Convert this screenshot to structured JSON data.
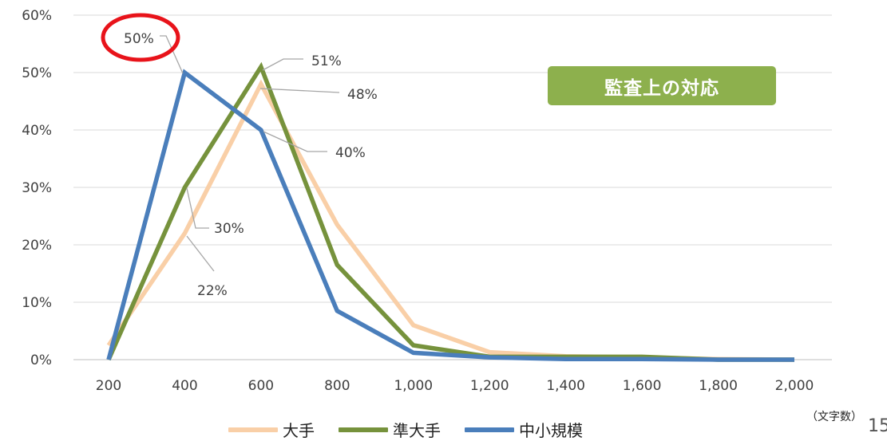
{
  "chart_data": {
    "type": "line",
    "x": [
      200,
      400,
      600,
      800,
      1000,
      1200,
      1400,
      1600,
      1800,
      2000
    ],
    "x_tick_labels": [
      "200",
      "400",
      "600",
      "800",
      "1,000",
      "1,200",
      "1,400",
      "1,600",
      "1,800",
      "2,000"
    ],
    "y_tick_labels": [
      "0%",
      "10%",
      "20%",
      "30%",
      "40%",
      "50%",
      "60%"
    ],
    "ylim": [
      0,
      60
    ],
    "grid": true,
    "legend_position": "bottom",
    "series": [
      {
        "name": "大手",
        "color": "#f9cfa7",
        "values": [
          2.5,
          22,
          48,
          23.5,
          6,
          1.3,
          0.6,
          0.4,
          0.1,
          0
        ]
      },
      {
        "name": "準大手",
        "color": "#76923c",
        "values": [
          0,
          30,
          51,
          16.5,
          2.5,
          0.5,
          0.5,
          0.5,
          0,
          0
        ]
      },
      {
        "name": "中小規模",
        "color": "#4a7ebb",
        "values": [
          0,
          50,
          40,
          8.5,
          1.2,
          0.4,
          0.1,
          0.1,
          0,
          0
        ]
      }
    ],
    "annotations": [
      {
        "text": "50%",
        "series": 2,
        "point": 1
      },
      {
        "text": "51%",
        "series": 1,
        "point": 2
      },
      {
        "text": "48%",
        "series": 0,
        "point": 2
      },
      {
        "text": "40%",
        "series": 2,
        "point": 2
      },
      {
        "text": "30%",
        "series": 1,
        "point": 1
      },
      {
        "text": "22%",
        "series": 0,
        "point": 1
      }
    ],
    "x_unit_label": "（文字数）"
  },
  "badge_text": "監査上の対応",
  "page_number": "15"
}
